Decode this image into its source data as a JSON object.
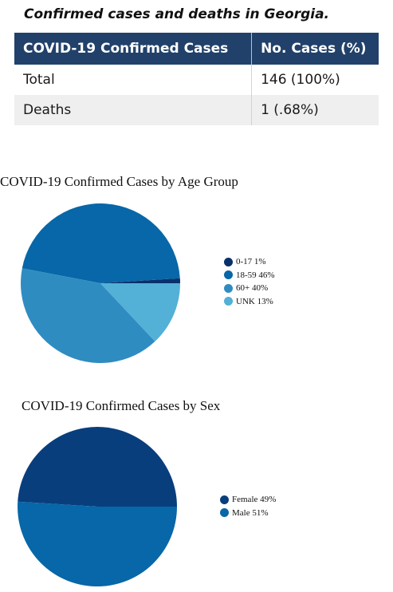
{
  "heading": "Confirmed cases and deaths in Georgia.",
  "table": {
    "headers": [
      "COVID-19 Confirmed Cases",
      "No. Cases (%)"
    ],
    "rows": [
      {
        "label": "Total",
        "value": "146 (100%)"
      },
      {
        "label": "Deaths",
        "value": "1 (.68%)"
      }
    ],
    "header_color": "#21416a"
  },
  "chart_data": [
    {
      "type": "pie",
      "title": "COVID-19 Confirmed Cases by Age Group",
      "slices": [
        {
          "label": "0-17 1%",
          "value": 1,
          "color": "#08306b"
        },
        {
          "label": "18-59 46%",
          "value": 46,
          "color": "#0767a8"
        },
        {
          "label": "60+ 40%",
          "value": 40,
          "color": "#2f8cc1"
        },
        {
          "label": "UNK 13%",
          "value": 13,
          "color": "#53b0d6"
        }
      ],
      "legend_position": "right"
    },
    {
      "type": "pie",
      "title": "COVID-19 Confirmed Cases by Sex",
      "slices": [
        {
          "label": "Female 49%",
          "value": 49,
          "color": "#093e7d"
        },
        {
          "label": "Male 51%",
          "value": 51,
          "color": "#0767a8"
        }
      ],
      "legend_position": "right"
    }
  ]
}
